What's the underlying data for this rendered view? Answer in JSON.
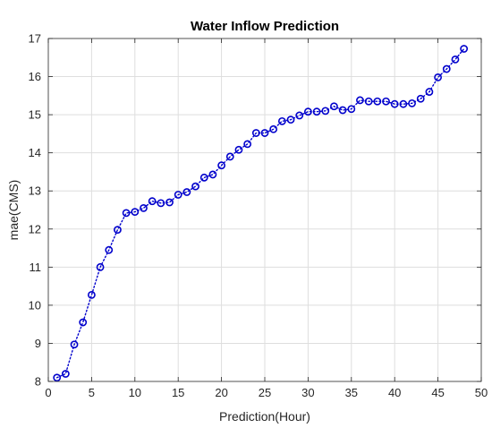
{
  "chart_data": {
    "type": "line",
    "title": "Water Inflow Prediction",
    "xlabel": "Prediction(Hour)",
    "ylabel": "mae(CMS)",
    "xlim": [
      0,
      50
    ],
    "ylim": [
      8,
      17
    ],
    "xticks": [
      0,
      5,
      10,
      15,
      20,
      25,
      30,
      35,
      40,
      45,
      50
    ],
    "yticks": [
      8,
      9,
      10,
      11,
      12,
      13,
      14,
      15,
      16,
      17
    ],
    "grid": true,
    "line_style": "dotted",
    "marker": "circle",
    "color": "#0000cc",
    "series": [
      {
        "x": [
          1,
          2,
          3,
          4,
          5,
          6,
          7,
          8,
          9,
          10,
          11,
          12,
          13,
          14,
          15,
          16,
          17,
          18,
          19,
          20,
          21,
          22,
          23,
          24,
          25,
          26,
          27,
          28,
          29,
          30,
          31,
          32,
          33,
          34,
          35,
          36,
          37,
          38,
          39,
          40,
          41,
          42,
          43,
          44,
          45,
          46,
          47,
          48
        ],
        "values": [
          8.1,
          8.2,
          8.97,
          9.55,
          10.27,
          11.0,
          11.45,
          11.98,
          12.42,
          12.45,
          12.55,
          12.73,
          12.68,
          12.7,
          12.9,
          12.97,
          13.12,
          13.35,
          13.43,
          13.67,
          13.9,
          14.08,
          14.23,
          14.52,
          14.52,
          14.62,
          14.83,
          14.87,
          14.98,
          15.08,
          15.08,
          15.1,
          15.22,
          15.12,
          15.15,
          15.38,
          15.35,
          15.35,
          15.35,
          15.28,
          15.28,
          15.3,
          15.42,
          15.6,
          15.98,
          16.2,
          16.45,
          16.73
        ]
      }
    ]
  }
}
